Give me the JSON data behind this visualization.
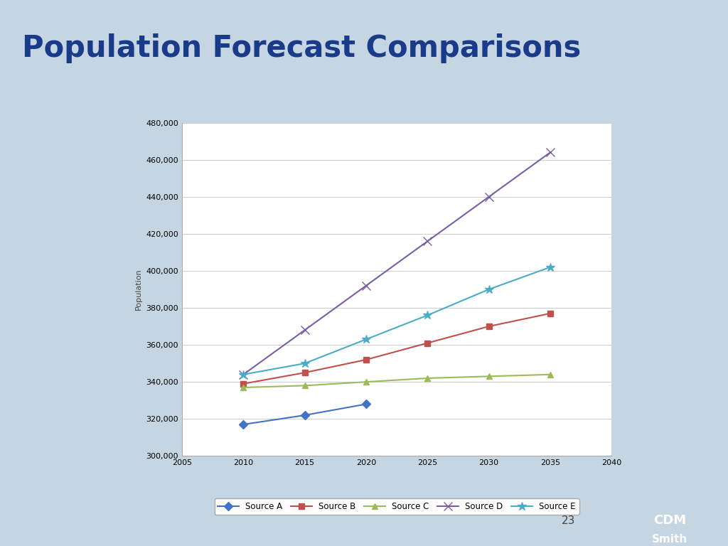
{
  "title": "Population Forecast Comparisons",
  "title_color": "#1a3a8a",
  "title_fontsize": 30,
  "slide_bg": "#c5d5e2",
  "chart_bg": "#ffffff",
  "chart_border": "#aaaaaa",
  "separator_color": "#4472c4",
  "footer_bg": "#b8c8d8",
  "logo_bg": "#1a3a8a",
  "ylabel": "Population",
  "xlim": [
    2005,
    2040
  ],
  "ylim": [
    300000,
    480000
  ],
  "yticks": [
    300000,
    320000,
    340000,
    360000,
    380000,
    400000,
    420000,
    440000,
    460000,
    480000
  ],
  "xticks": [
    2005,
    2010,
    2015,
    2020,
    2025,
    2030,
    2035,
    2040
  ],
  "series": [
    {
      "label": "Source A",
      "color": "#4472c4",
      "marker": "D",
      "markersize": 6,
      "x": [
        2010,
        2015,
        2020
      ],
      "y": [
        317000,
        322000,
        328000
      ]
    },
    {
      "label": "Source B",
      "color": "#c0504d",
      "marker": "s",
      "markersize": 6,
      "x": [
        2010,
        2015,
        2020,
        2025,
        2030,
        2035
      ],
      "y": [
        339000,
        345000,
        352000,
        361000,
        370000,
        377000
      ]
    },
    {
      "label": "Source C",
      "color": "#9bbb59",
      "marker": "^",
      "markersize": 6,
      "x": [
        2010,
        2015,
        2020,
        2025,
        2030,
        2035
      ],
      "y": [
        337000,
        338000,
        340000,
        342000,
        343000,
        344000
      ]
    },
    {
      "label": "Source D",
      "color": "#7b5ea7",
      "marker": "x",
      "markersize": 8,
      "x": [
        2010,
        2015,
        2020,
        2025,
        2030,
        2035
      ],
      "y": [
        344000,
        368000,
        392000,
        416000,
        440000,
        464000
      ]
    },
    {
      "label": "Source E",
      "color": "#4bacc6",
      "marker": "*",
      "markersize": 9,
      "x": [
        2010,
        2015,
        2020,
        2025,
        2030,
        2035
      ],
      "y": [
        344000,
        350000,
        363000,
        376000,
        390000,
        402000
      ]
    }
  ],
  "page_number": "23"
}
